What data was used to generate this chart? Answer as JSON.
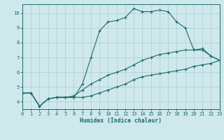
{
  "xlabel": "Humidex (Indice chaleur)",
  "bg_color": "#cfe8ec",
  "grid_color": "#aacdd4",
  "line_color": "#1a6b6b",
  "xlim": [
    0,
    23
  ],
  "ylim": [
    3.5,
    10.6
  ],
  "yticks": [
    4,
    5,
    6,
    7,
    8,
    9,
    10
  ],
  "xticks": [
    0,
    1,
    2,
    3,
    4,
    5,
    6,
    7,
    8,
    9,
    10,
    11,
    12,
    13,
    14,
    15,
    16,
    17,
    18,
    19,
    20,
    21,
    22,
    23
  ],
  "line1_x": [
    0,
    1,
    2,
    3,
    4,
    5,
    6,
    7,
    8,
    9,
    10,
    11,
    12,
    13,
    14,
    15,
    16,
    17,
    18,
    19,
    20,
    21,
    22,
    23
  ],
  "line1_y": [
    4.6,
    4.6,
    3.7,
    4.2,
    4.3,
    4.3,
    4.3,
    5.2,
    7.0,
    8.8,
    9.4,
    9.5,
    9.7,
    10.3,
    10.1,
    10.1,
    10.2,
    10.1,
    9.4,
    9.0,
    7.5,
    7.6,
    7.1,
    6.8
  ],
  "line2_x": [
    0,
    1,
    2,
    3,
    4,
    5,
    6,
    7,
    8,
    9,
    10,
    11,
    12,
    13,
    14,
    15,
    16,
    17,
    18,
    19,
    20,
    21,
    22,
    23
  ],
  "line2_y": [
    4.6,
    4.6,
    3.7,
    4.2,
    4.3,
    4.3,
    4.3,
    4.3,
    4.4,
    4.6,
    4.8,
    5.0,
    5.2,
    5.5,
    5.7,
    5.8,
    5.9,
    6.0,
    6.1,
    6.2,
    6.4,
    6.5,
    6.6,
    6.8
  ],
  "line3_x": [
    0,
    1,
    2,
    3,
    4,
    5,
    6,
    7,
    8,
    9,
    10,
    11,
    12,
    13,
    14,
    15,
    16,
    17,
    18,
    19,
    20,
    21,
    22,
    23
  ],
  "line3_y": [
    4.6,
    4.6,
    3.7,
    4.2,
    4.3,
    4.3,
    4.4,
    4.8,
    5.2,
    5.5,
    5.8,
    6.0,
    6.2,
    6.5,
    6.8,
    7.0,
    7.2,
    7.3,
    7.4,
    7.5,
    7.5,
    7.5,
    7.1,
    6.8
  ]
}
